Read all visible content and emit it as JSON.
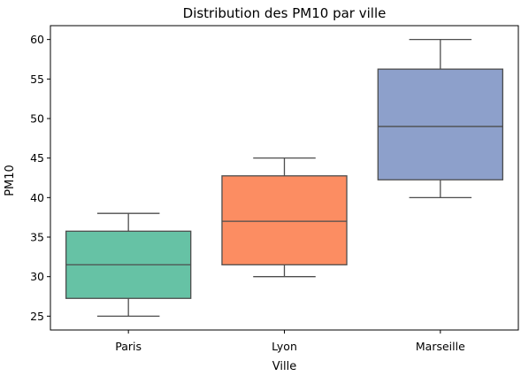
{
  "chart_data": {
    "type": "box",
    "title": "Distribution des PM10 par ville",
    "xlabel": "Ville",
    "ylabel": "PM10",
    "ylim": [
      23.25,
      61.75
    ],
    "yticks": [
      25,
      30,
      35,
      40,
      45,
      50,
      55,
      60
    ],
    "grid": false,
    "categories": [
      "Paris",
      "Lyon",
      "Marseille"
    ],
    "boxes": [
      {
        "category": "Paris",
        "whisker_low": 25,
        "q1": 27.25,
        "median": 31.5,
        "q3": 35.75,
        "whisker_high": 38,
        "color": "#66c2a5"
      },
      {
        "category": "Lyon",
        "whisker_low": 30,
        "q1": 31.5,
        "median": 37,
        "q3": 42.75,
        "whisker_high": 45,
        "color": "#fc8d62"
      },
      {
        "category": "Marseille",
        "whisker_low": 40,
        "q1": 42.25,
        "median": 49,
        "q3": 56.25,
        "whisker_high": 60,
        "color": "#8da0cb"
      }
    ],
    "line_color": "#4d4d4d"
  }
}
